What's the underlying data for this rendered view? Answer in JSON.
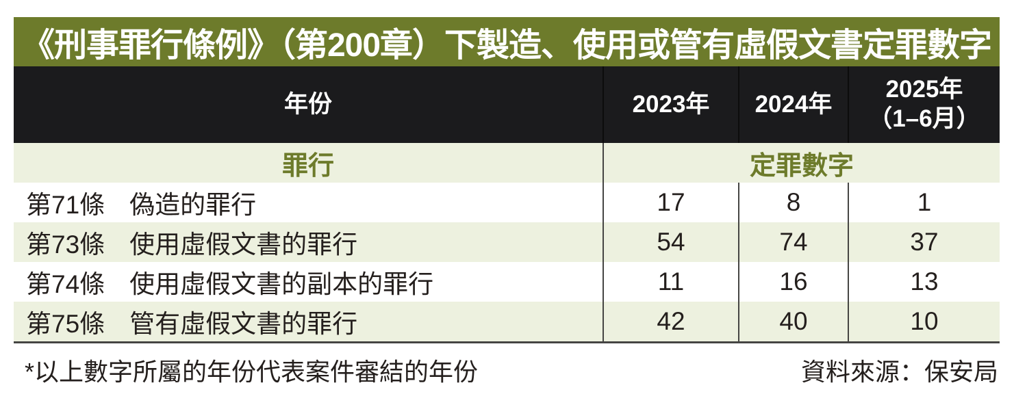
{
  "title": "《刑事罪行條例》（第200章）下製造、使用或管有虛假文書定罪數字",
  "table": {
    "year_header": "年份",
    "col_2023": "2023年",
    "col_2024": "2024年",
    "col_2025_line1": "2025年",
    "col_2025_line2": "（1–6月）",
    "offence_header": "罪行",
    "conviction_header": "定罪數字",
    "rows": [
      {
        "clause": "第71條",
        "offence": "偽造的罪行",
        "values": [
          "17",
          "8",
          "1"
        ]
      },
      {
        "clause": "第73條",
        "offence": "使用虛假文書的罪行",
        "values": [
          "54",
          "74",
          "37"
        ]
      },
      {
        "clause": "第74條",
        "offence": "使用虛假文書的副本的罪行",
        "values": [
          "11",
          "16",
          "13"
        ]
      },
      {
        "clause": "第75條",
        "offence": "管有虛假文書的罪行",
        "values": [
          "42",
          "40",
          "10"
        ]
      }
    ]
  },
  "footer": {
    "note": "*以上數字所屬的年份代表案件審結的年份",
    "source": "資料來源：保安局"
  },
  "colors": {
    "olive": "#6d7b2b",
    "cream": "#edf1df",
    "header_black": "#1b1b1d",
    "text": "#241f1d",
    "divider": "#454543"
  },
  "chart_data": {
    "type": "table",
    "title": "《刑事罪行條例》（第200章）下製造、使用或管有虛假文書定罪數字",
    "columns": [
      "罪行",
      "2023年",
      "2024年",
      "2025年（1–6月）"
    ],
    "rows": [
      [
        "第71條 偽造的罪行",
        17,
        8,
        1
      ],
      [
        "第73條 使用虛假文書的罪行",
        54,
        74,
        37
      ],
      [
        "第74條 使用虛假文書的副本的罪行",
        11,
        16,
        13
      ],
      [
        "第75條 管有虛假文書的罪行",
        42,
        40,
        10
      ]
    ],
    "note": "*以上數字所屬的年份代表案件審結的年份",
    "source": "資料來源：保安局"
  }
}
